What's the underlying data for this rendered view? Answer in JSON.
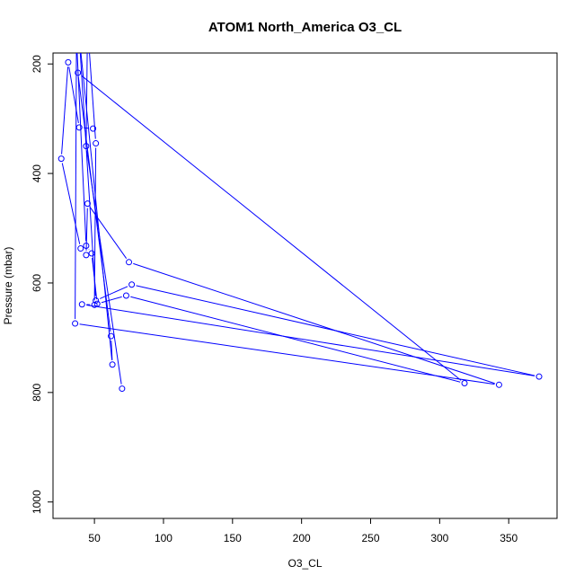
{
  "chart_data": {
    "type": "line",
    "title": "ATOM1 North_America O3_CL",
    "xlabel": "O3_CL",
    "ylabel": "Pressure (mbar)",
    "xlim": [
      20,
      385
    ],
    "ylim": [
      1030,
      180
    ],
    "x_ticks": [
      50,
      100,
      150,
      200,
      250,
      300,
      350
    ],
    "y_ticks": [
      200,
      400,
      600,
      800,
      1000
    ],
    "color": "#0000ff",
    "grid": false,
    "legend": "none",
    "series": [
      {
        "x": [
          49,
          39,
          31,
          26,
          40,
          44,
          45,
          75,
          343,
          36,
          37,
          44,
          48,
          52,
          73,
          318,
          38,
          62,
          63,
          39,
          51,
          77,
          372,
          41,
          50,
          51,
          45,
          44,
          70
        ],
        "y": [
          318,
          316,
          197,
          373,
          537,
          549,
          455,
          562,
          786,
          674,
          152,
          532,
          546,
          638,
          623,
          783,
          216,
          697,
          749,
          150,
          632,
          603,
          771,
          639,
          640,
          345,
          130,
          350,
          793
        ]
      }
    ]
  }
}
